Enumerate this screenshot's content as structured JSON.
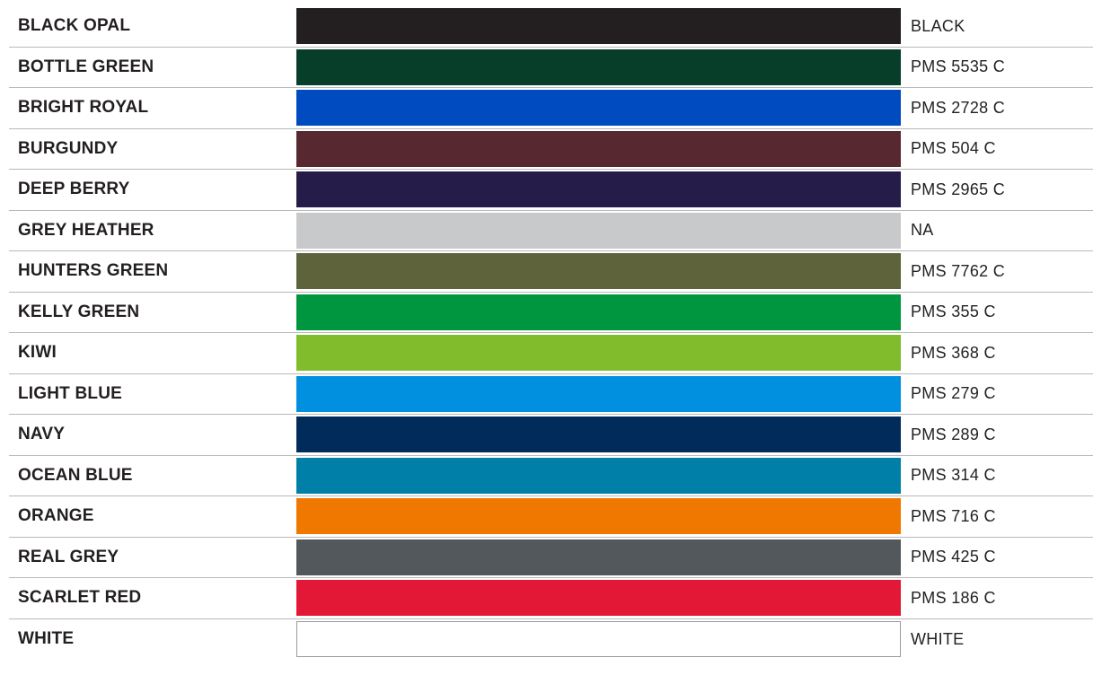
{
  "colors": [
    {
      "name": "BLACK OPAL",
      "code": "BLACK",
      "hex": "#231f20"
    },
    {
      "name": "BOTTLE GREEN",
      "code": "PMS 5535 C",
      "hex": "#073e2a"
    },
    {
      "name": "BRIGHT ROYAL",
      "code": "PMS 2728 C",
      "hex": "#004bbf"
    },
    {
      "name": "BURGUNDY",
      "code": "PMS 504 C",
      "hex": "#582830"
    },
    {
      "name": "DEEP BERRY",
      "code": "PMS 2965 C",
      "hex": "#261c49"
    },
    {
      "name": "GREY HEATHER",
      "code": "NA",
      "hex": "#c8c9cb"
    },
    {
      "name": "HUNTERS GREEN",
      "code": "PMS 7762 C",
      "hex": "#5e633b"
    },
    {
      "name": "KELLY GREEN",
      "code": "PMS 355 C",
      "hex": "#00963f"
    },
    {
      "name": "KIWI",
      "code": "PMS 368 C",
      "hex": "#81bc2c"
    },
    {
      "name": "LIGHT BLUE",
      "code": "PMS 279 C",
      "hex": "#0090df"
    },
    {
      "name": "NAVY",
      "code": "PMS 289 C",
      "hex": "#002b5b"
    },
    {
      "name": "OCEAN BLUE",
      "code": "PMS 314 C",
      "hex": "#007fa8"
    },
    {
      "name": "ORANGE",
      "code": "PMS 716 C",
      "hex": "#f07700"
    },
    {
      "name": "REAL GREY",
      "code": "PMS 425 C",
      "hex": "#53585c"
    },
    {
      "name": "SCARLET RED",
      "code": "PMS 186 C",
      "hex": "#e31837"
    },
    {
      "name": "WHITE",
      "code": "WHITE",
      "hex": "#ffffff"
    }
  ]
}
